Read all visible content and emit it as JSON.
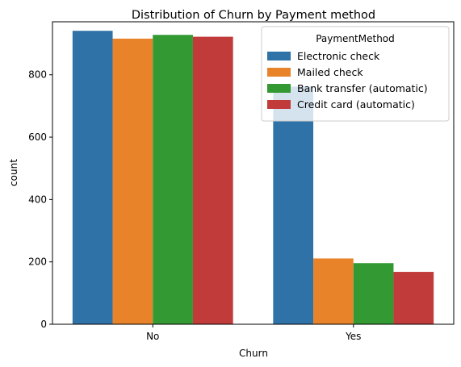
{
  "chart_data": {
    "type": "bar",
    "title": "Distribution of Churn by Payment method",
    "xlabel": "Churn",
    "ylabel": "count",
    "categories": [
      "No",
      "Yes"
    ],
    "ylim": [
      0,
      970
    ],
    "yticks": [
      0,
      200,
      400,
      600,
      800
    ],
    "grid": false,
    "legend": {
      "title": "PaymentMethod",
      "placement": "top-right"
    },
    "series": [
      {
        "name": "Electronic check",
        "color": "#2f72a8",
        "values": [
          941,
          762
        ]
      },
      {
        "name": "Mailed check",
        "color": "#e8832a",
        "values": [
          916,
          211
        ]
      },
      {
        "name": "Bank transfer (automatic)",
        "color": "#339933",
        "values": [
          928,
          196
        ]
      },
      {
        "name": "Credit card (automatic)",
        "color": "#c23b3b",
        "values": [
          922,
          168
        ]
      }
    ]
  }
}
